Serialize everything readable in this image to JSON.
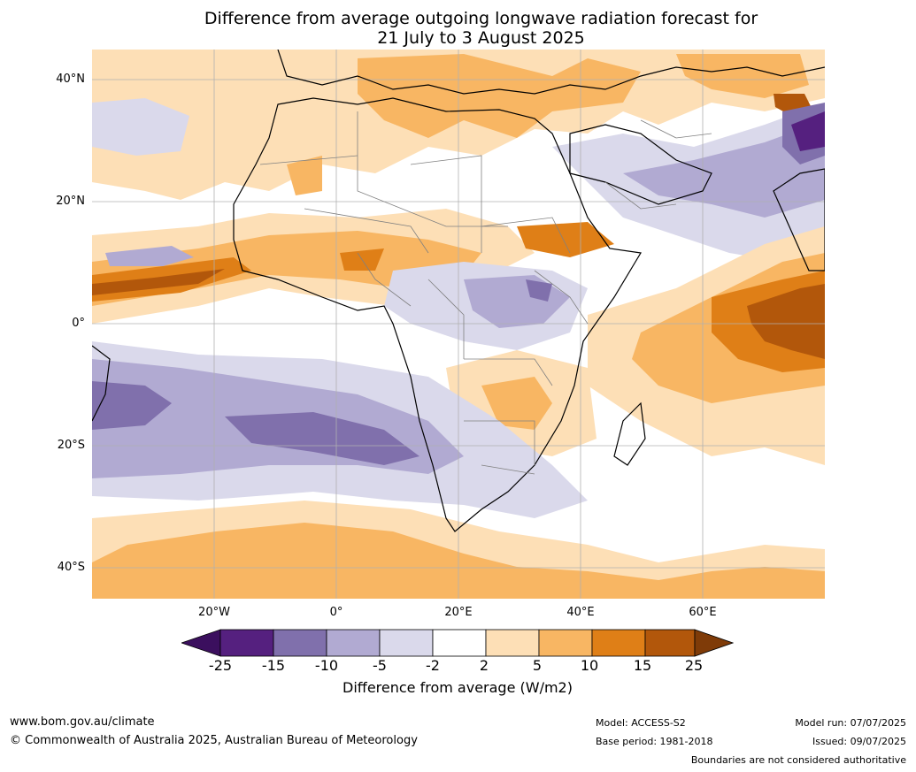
{
  "map": {
    "title_line1": "Difference from average outgoing longwave radiation forecast for",
    "title_line2": "21 July to 3 August 2025",
    "lat_labels": [
      "40°N",
      "20°N",
      "0°",
      "20°S",
      "40°S"
    ],
    "lon_labels": [
      "20°W",
      "0°",
      "20°E",
      "40°E",
      "60°E"
    ]
  },
  "colorbar": {
    "ticks": [
      "-25",
      "-15",
      "-10",
      "-5",
      "-2",
      "2",
      "5",
      "10",
      "15",
      "25"
    ],
    "label": "Difference from average (W/m2)",
    "colors": {
      "below_-25": "#3b0f5e",
      "-25_-15": "#55207f",
      "-15_-10": "#8070ac",
      "-10_-5": "#b1aad2",
      "-5_-2": "#dad9eb",
      "-2_2": "#ffffff",
      "2_5": "#fddfb6",
      "5_10": "#f8b663",
      "10_15": "#df7f17",
      "15_25": "#b2570b",
      "above_25": "#7f3b08"
    }
  },
  "footer": {
    "website": "www.bom.gov.au/climate",
    "copyright": "© Commonwealth of Australia 2025, Australian Bureau of Meteorology",
    "model": "Model: ACCESS-S2",
    "base_period": "Base period: 1981-2018",
    "model_run": "Model run: 07/07/2025",
    "issued": "Issued: 09/07/2025",
    "disclaimer": "Boundaries are not considered authoritative"
  }
}
